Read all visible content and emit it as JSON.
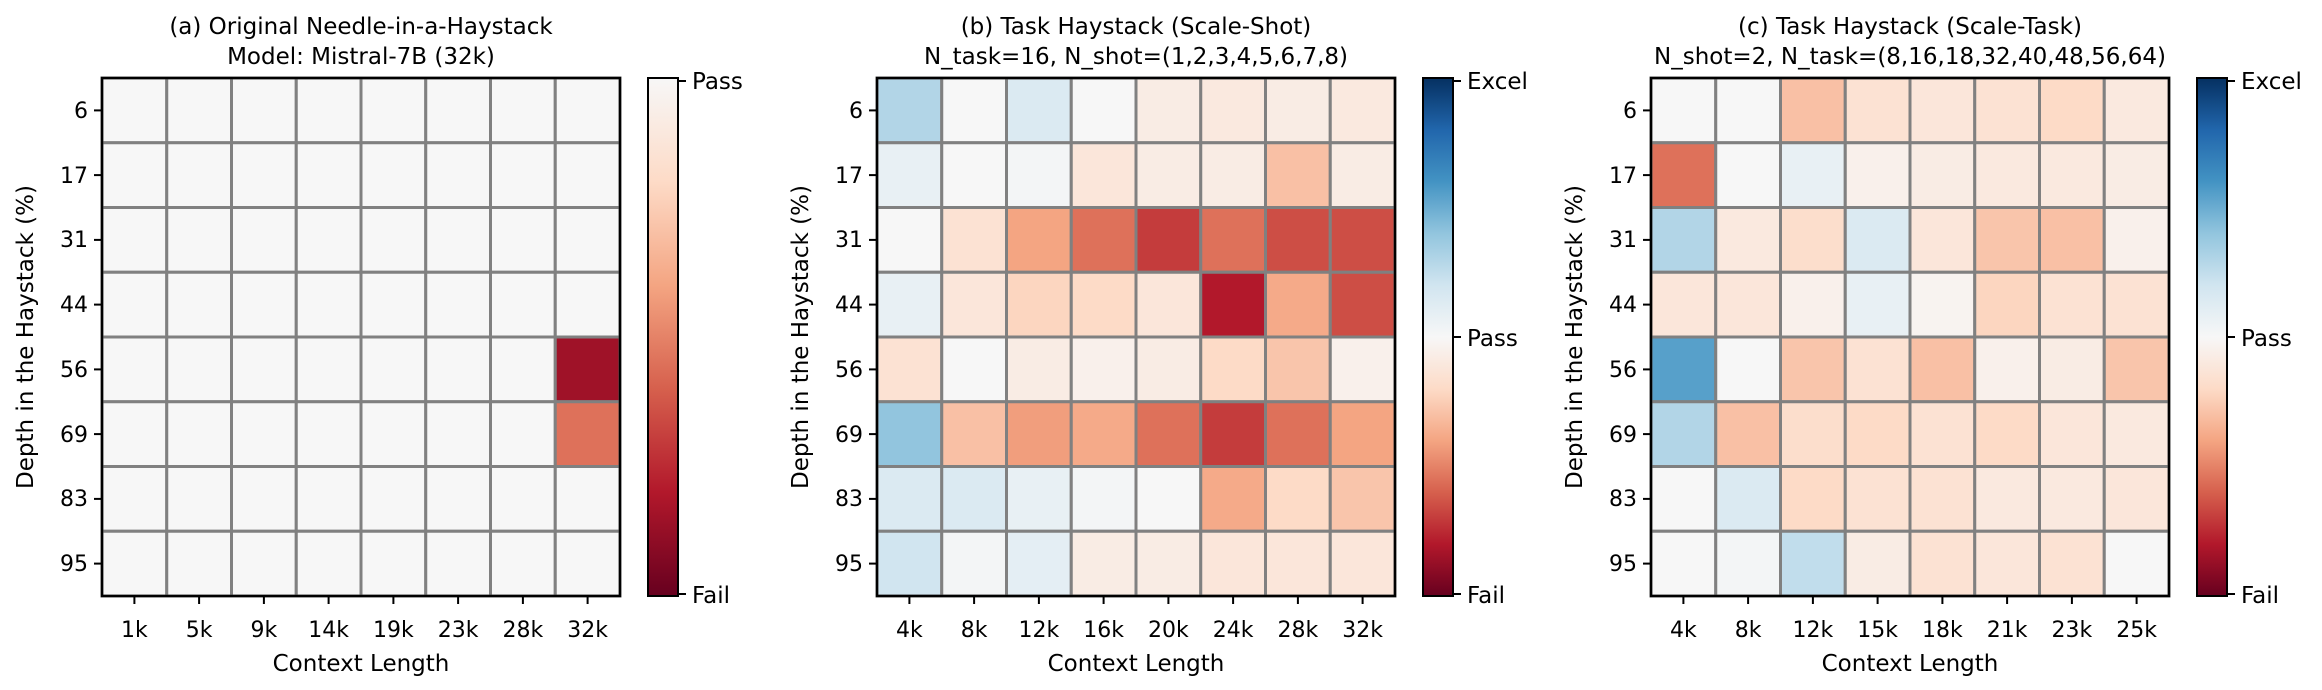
{
  "chart_data": [
    {
      "type": "heatmap",
      "title": "(a) Original Needle-in-a-Haystack",
      "subtitle": "Model: Mistral-7B (32k)",
      "xlabel": "Context Length",
      "ylabel": "Depth in the Haystack (%)",
      "x_categories": [
        "1k",
        "5k",
        "9k",
        "14k",
        "19k",
        "23k",
        "28k",
        "32k"
      ],
      "y_categories": [
        "6",
        "17",
        "31",
        "44",
        "56",
        "69",
        "83",
        "95"
      ],
      "colorbar": {
        "ticks": [
          "Pass",
          "Fail"
        ],
        "range": [
          -1,
          0
        ],
        "colormap": "RdBu"
      },
      "values": [
        [
          0,
          0,
          0,
          0,
          0,
          0,
          0,
          0
        ],
        [
          0,
          0,
          0,
          0,
          0,
          0,
          0,
          0
        ],
        [
          0,
          0,
          0,
          0,
          0,
          0,
          0,
          0
        ],
        [
          0,
          0,
          0,
          0,
          0,
          0,
          0,
          0
        ],
        [
          0,
          0,
          0,
          0,
          0,
          0,
          0,
          -0.85
        ],
        [
          0,
          0,
          0,
          0,
          0,
          0,
          0,
          -0.55
        ],
        [
          0,
          0,
          0,
          0,
          0,
          0,
          0,
          0
        ],
        [
          0,
          0,
          0,
          0,
          0,
          0,
          0,
          0
        ]
      ]
    },
    {
      "type": "heatmap",
      "title": "(b) Task Haystack (Scale-Shot)",
      "subtitle": "N_task=16, N_shot=(1,2,3,4,5,6,7,8)",
      "xlabel": "Context Length",
      "ylabel": "Depth in the Haystack (%)",
      "x_categories": [
        "4k",
        "8k",
        "12k",
        "16k",
        "20k",
        "24k",
        "28k",
        "32k"
      ],
      "y_categories": [
        "6",
        "17",
        "31",
        "44",
        "56",
        "69",
        "83",
        "95"
      ],
      "colorbar": {
        "ticks": [
          "Excel",
          "Pass",
          "Fail"
        ],
        "range": [
          -1,
          1
        ],
        "colormap": "RdBu"
      },
      "values": [
        [
          0.3,
          0.0,
          0.15,
          0.0,
          -0.08,
          -0.1,
          -0.08,
          -0.1
        ],
        [
          0.08,
          0.0,
          0.02,
          -0.12,
          -0.08,
          -0.08,
          -0.3,
          -0.08
        ],
        [
          0.0,
          -0.15,
          -0.4,
          -0.55,
          -0.7,
          -0.55,
          -0.65,
          -0.65
        ],
        [
          0.08,
          -0.12,
          -0.22,
          -0.2,
          -0.12,
          -0.8,
          -0.38,
          -0.65
        ],
        [
          -0.15,
          0.0,
          -0.08,
          -0.05,
          -0.08,
          -0.2,
          -0.28,
          -0.05
        ],
        [
          0.4,
          -0.3,
          -0.42,
          -0.38,
          -0.55,
          -0.7,
          -0.55,
          -0.4
        ],
        [
          0.15,
          0.15,
          0.08,
          0.02,
          0.0,
          -0.38,
          -0.2,
          -0.28
        ],
        [
          0.2,
          0.02,
          0.1,
          -0.08,
          -0.08,
          -0.12,
          -0.12,
          -0.12
        ]
      ]
    },
    {
      "type": "heatmap",
      "title": "(c) Task Haystack (Scale-Task)",
      "subtitle": "N_shot=2, N_task=(8,16,18,32,40,48,56,64)",
      "xlabel": "Context Length",
      "ylabel": "Depth in the Haystack (%)",
      "x_categories": [
        "4k",
        "8k",
        "12k",
        "15k",
        "18k",
        "21k",
        "23k",
        "25k"
      ],
      "y_categories": [
        "6",
        "17",
        "31",
        "44",
        "56",
        "69",
        "83",
        "95"
      ],
      "colorbar": {
        "ticks": [
          "Excel",
          "Pass",
          "Fail"
        ],
        "range": [
          -1,
          1
        ],
        "colormap": "RdBu"
      },
      "values": [
        [
          0.0,
          0.0,
          -0.3,
          -0.15,
          -0.12,
          -0.15,
          -0.2,
          -0.1
        ],
        [
          -0.55,
          0.0,
          0.08,
          -0.05,
          -0.08,
          -0.1,
          -0.1,
          -0.08
        ],
        [
          0.3,
          -0.1,
          -0.18,
          0.15,
          -0.12,
          -0.28,
          -0.3,
          -0.05
        ],
        [
          -0.12,
          -0.12,
          -0.05,
          0.08,
          -0.03,
          -0.22,
          -0.15,
          -0.15
        ],
        [
          0.55,
          0.0,
          -0.28,
          -0.15,
          -0.3,
          -0.05,
          -0.08,
          -0.28
        ],
        [
          0.3,
          -0.3,
          -0.18,
          -0.2,
          -0.15,
          -0.2,
          -0.12,
          -0.1
        ],
        [
          0.0,
          0.15,
          -0.2,
          -0.15,
          -0.15,
          -0.1,
          -0.1,
          -0.12
        ],
        [
          0.0,
          0.02,
          0.25,
          -0.08,
          -0.15,
          -0.12,
          -0.15,
          0.0
        ]
      ]
    }
  ]
}
